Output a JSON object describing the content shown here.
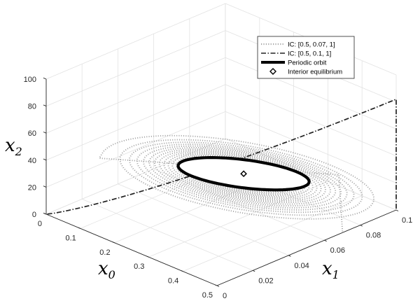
{
  "chart_data": {
    "type": "line3d",
    "axes": {
      "x0": {
        "label": "x",
        "sub": "0",
        "lim": [
          0,
          0.5
        ],
        "ticks": [
          "0",
          "0.1",
          "0.2",
          "0.3",
          "0.4",
          "0.5"
        ]
      },
      "x1": {
        "label": "x",
        "sub": "1",
        "lim": [
          0,
          0.1
        ],
        "ticks": [
          "0",
          "0.02",
          "0.04",
          "0.06",
          "0.08",
          "0.1"
        ]
      },
      "x2": {
        "label": "x",
        "sub": "2",
        "lim": [
          0,
          100
        ],
        "ticks": [
          "0",
          "20",
          "40",
          "60",
          "80",
          "100"
        ]
      }
    },
    "grid": true,
    "legend_position": "top-right",
    "series": [
      {
        "name": "IC: [0.5, 0.07, 1]",
        "style": "dotted",
        "color": "#a6a6a6",
        "description_points": [
          [
            0.5,
            0.07,
            1
          ],
          [
            0.5,
            0.07,
            30
          ],
          [
            0.5,
            0.068,
            45
          ],
          [
            0.45,
            0.05,
            40
          ],
          [
            0.2,
            0.02,
            10
          ],
          [
            0.1,
            0.02,
            5
          ],
          [
            0.08,
            0.04,
            8
          ],
          [
            0.14,
            0.06,
            22
          ],
          [
            0.25,
            0.065,
            35
          ],
          [
            0.32,
            0.058,
            35
          ]
        ]
      },
      {
        "name": "IC: [0.5, 0.1, 1]",
        "style": "dash-dot",
        "color": "#222222",
        "description_points": [
          [
            0.5,
            0.1,
            1
          ],
          [
            0.5,
            0.1,
            30
          ],
          [
            0.5,
            0.1,
            85
          ],
          [
            0.3,
            0.07,
            60
          ],
          [
            0.1,
            0.025,
            15
          ],
          [
            0.0,
            0.0,
            0
          ]
        ]
      },
      {
        "name": "Periodic orbit",
        "style": "solid-thick",
        "color": "#000000"
      },
      {
        "name": "Interior equilibrium",
        "style": "diamond-marker",
        "color": "#000000",
        "point": [
          0.3,
          0.053,
          32
        ]
      }
    ]
  }
}
